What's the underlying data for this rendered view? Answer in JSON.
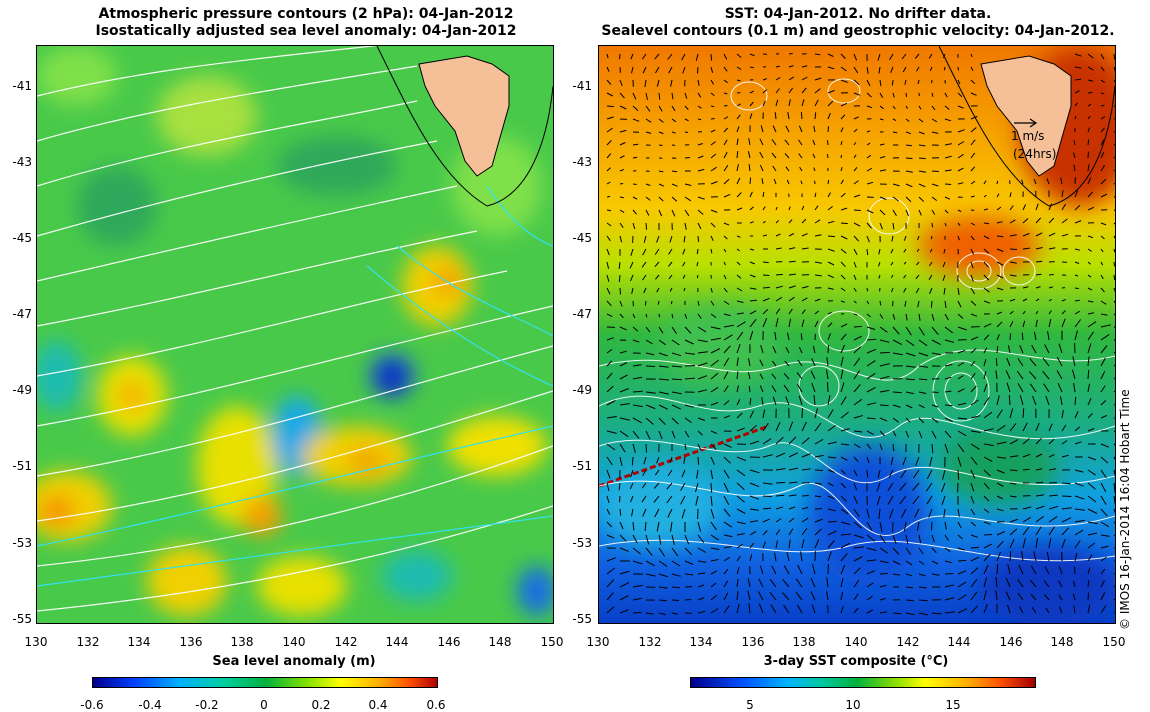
{
  "left_panel": {
    "title_line1": "Atmospheric pressure contours (2 hPa): 04-Jan-2012",
    "title_line2": "Isostatically adjusted sea level anomaly: 04-Jan-2012",
    "colorbar_label": "Sea level anomaly (m)",
    "colorbar_ticks": [
      "-0.6",
      "-0.4",
      "-0.2",
      "0",
      "0.2",
      "0.4",
      "0.6"
    ]
  },
  "right_panel": {
    "title_line1": "SST: 04-Jan-2012. No drifter data.",
    "title_line2": "Sealevel contours (0.1 m) and geostrophic velocity: 04-Jan-2012.",
    "colorbar_label": "3-day SST composite (°C)",
    "colorbar_ticks": [
      "5",
      "10",
      "15"
    ],
    "velocity_key_label": "1 m/s",
    "velocity_key_sub": "(24hrs)"
  },
  "axes": {
    "x_ticks": [
      "130",
      "132",
      "134",
      "136",
      "138",
      "140",
      "142",
      "144",
      "146",
      "148",
      "150"
    ],
    "y_ticks": [
      "-41",
      "-43",
      "-45",
      "-47",
      "-49",
      "-51",
      "-53",
      "-55"
    ]
  },
  "credit": "© IMOS 16-Jan-2014 16:04 Hobart Time",
  "colors": {
    "land": "#f5c097",
    "sla_background": "#49c94a",
    "sst_warm": "#f08c00",
    "sst_cold": "#1458e0"
  }
}
